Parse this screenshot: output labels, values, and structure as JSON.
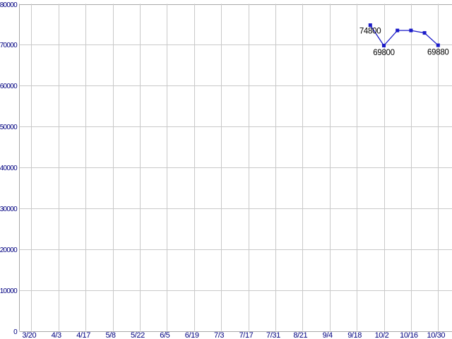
{
  "chart_data": {
    "type": "line",
    "title": "",
    "grid": true,
    "legend_position": "none",
    "x_axis": {
      "tick_labels": [
        "3/20",
        "4/3",
        "4/17",
        "5/8",
        "5/22",
        "6/5",
        "6/19",
        "7/3",
        "7/17",
        "7/31",
        "8/21",
        "9/4",
        "9/18",
        "10/2",
        "10/16",
        "10/30"
      ]
    },
    "y_axis": {
      "min": 0,
      "max": 80000,
      "tick_interval": 10000,
      "tick_labels": [
        "0",
        "10000",
        "20000",
        "30000",
        "40000",
        "50000",
        "60000",
        "70000",
        "80000"
      ]
    },
    "series": [
      {
        "name": "values",
        "color": "#1a1ac8",
        "marker": "square",
        "points": [
          {
            "date": "9/25",
            "tick_pos": 12.5,
            "value": 74800,
            "label": "74800",
            "label_side": "left"
          },
          {
            "date": "10/2",
            "tick_pos": 13,
            "value": 69800,
            "label": "69800",
            "label_side": "below"
          },
          {
            "date": "10/9",
            "tick_pos": 13.5,
            "value": 73500
          },
          {
            "date": "10/16",
            "tick_pos": 14,
            "value": 73500
          },
          {
            "date": "10/23",
            "tick_pos": 14.5,
            "value": 72900
          },
          {
            "date": "10/30",
            "tick_pos": 15,
            "value": 69880,
            "label": "69880",
            "label_side": "below"
          }
        ]
      }
    ]
  },
  "colors": {
    "background": "#ffffff",
    "grid": "#c9c9c9",
    "axis_border": "#a9a9a9",
    "axis_label": "#000080",
    "point_label": "#000000"
  }
}
